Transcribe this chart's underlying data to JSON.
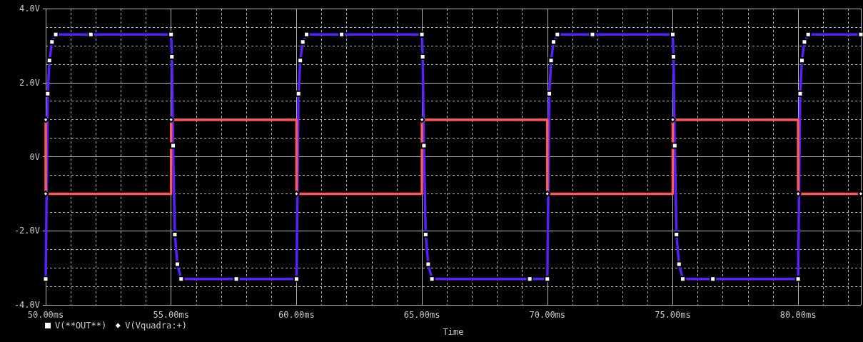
{
  "chart_data": {
    "type": "line",
    "xlabel": "Time",
    "xlim": [
      50,
      82.5
    ],
    "xticks": [
      {
        "value": 50,
        "label": "50.00ms"
      },
      {
        "value": 55,
        "label": "55.00ms"
      },
      {
        "value": 60,
        "label": "60.00ms"
      },
      {
        "value": 65,
        "label": "65.00ms"
      },
      {
        "value": 70,
        "label": "70.00ms"
      },
      {
        "value": 75,
        "label": "75.00ms"
      },
      {
        "value": 80,
        "label": "80.00ms"
      }
    ],
    "ylim": [
      -4,
      4
    ],
    "yticks": [
      {
        "value": -4,
        "label": "-4.0V"
      },
      {
        "value": -2,
        "label": "-2.0V"
      },
      {
        "value": 0,
        "label": "0V"
      },
      {
        "value": 2,
        "label": "2.0V"
      },
      {
        "value": 4,
        "label": "4.0V"
      }
    ],
    "grid": true,
    "legend": "bottom left",
    "line_style": "solid",
    "series": [
      {
        "name": "V(**OUT**)",
        "color": "#5a1eff",
        "marker": "square",
        "x": [
          50,
          50.08,
          50.15,
          50.25,
          50.4,
          51.8,
          55,
          55.03,
          55.08,
          55.15,
          55.25,
          55.4,
          57.6,
          60,
          60.08,
          60.15,
          60.25,
          60.4,
          61.8,
          65,
          65.03,
          65.08,
          65.15,
          65.25,
          65.4,
          69.3,
          70,
          70.08,
          70.15,
          70.25,
          70.4,
          71.8,
          75,
          75.03,
          75.08,
          75.15,
          75.25,
          75.4,
          76.6,
          80,
          80.08,
          80.15,
          80.25,
          80.4,
          82.5
        ],
        "values": [
          -3.3,
          1.7,
          2.6,
          3.1,
          3.3,
          3.3,
          3.3,
          2.7,
          0.3,
          -2.1,
          -2.9,
          -3.3,
          -3.3,
          -3.3,
          1.7,
          2.6,
          3.1,
          3.3,
          3.3,
          3.3,
          2.7,
          0.3,
          -2.1,
          -2.9,
          -3.3,
          -3.3,
          -3.3,
          1.7,
          2.6,
          3.1,
          3.3,
          3.3,
          3.3,
          2.7,
          0.3,
          -2.1,
          -2.9,
          -3.3,
          -3.3,
          -3.3,
          1.7,
          2.6,
          3.1,
          3.3,
          3.3
        ]
      },
      {
        "name": "V(Vquadra:+)",
        "color": "#ff5a5a",
        "type": "step",
        "marker": "diamond",
        "x": [
          50,
          50,
          55,
          60,
          65,
          70,
          75,
          80,
          82.5
        ],
        "values": [
          1,
          -1,
          1,
          -1,
          1,
          -1,
          1,
          -1,
          -1
        ]
      }
    ]
  }
}
